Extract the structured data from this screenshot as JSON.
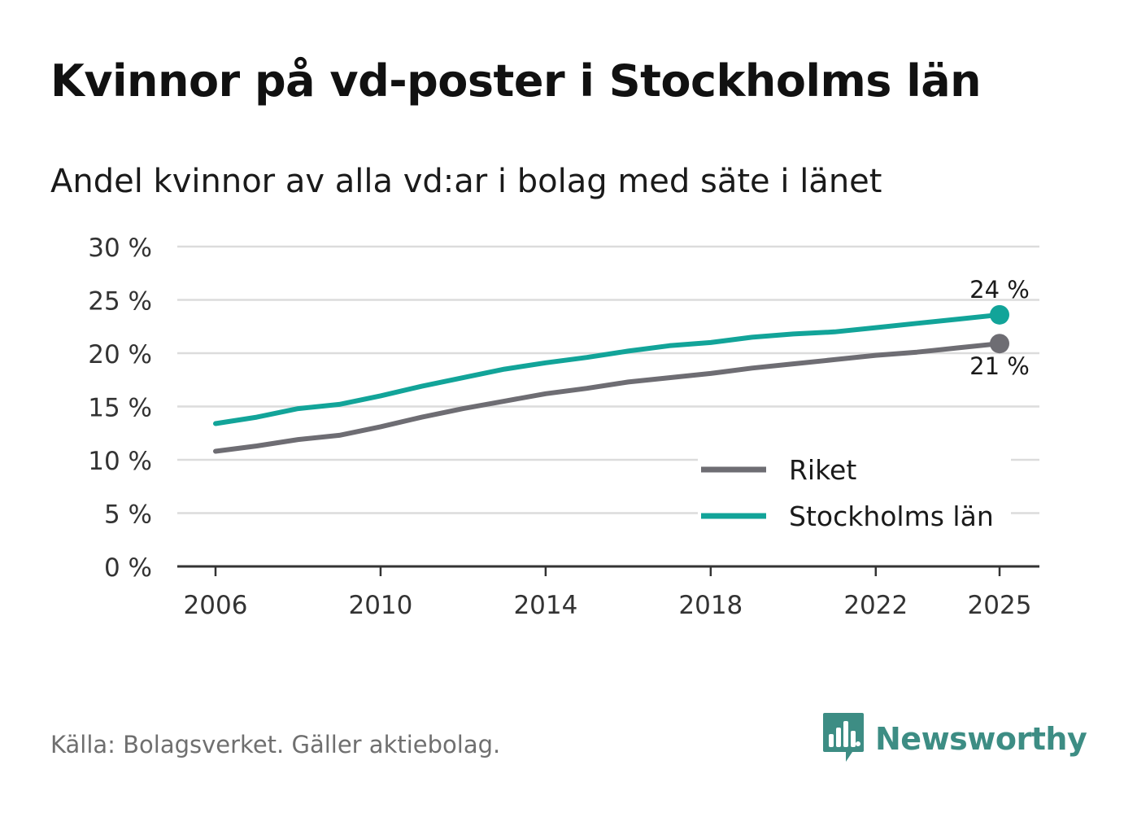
{
  "title": "Kvinnor på vd-poster i Stockholms län",
  "subtitle": "Andel kvinnor av alla vd:ar i bolag med säte i länet",
  "source": "Källa: Bolagsverket. Gäller aktiebolag.",
  "brand": {
    "name": "Newsworthy",
    "icon": "newsworthy-logo-icon"
  },
  "colors": {
    "riket": "#6e6d73",
    "stockholm": "#12a499",
    "grid": "#dcdcdc",
    "axis": "#333333",
    "text": "#1a1a1a"
  },
  "chart_data": {
    "type": "line",
    "title": "Kvinnor på vd-poster i Stockholms län",
    "xlabel": "",
    "ylabel": "",
    "x": [
      2006,
      2007,
      2008,
      2009,
      2010,
      2011,
      2012,
      2013,
      2014,
      2015,
      2016,
      2017,
      2018,
      2019,
      2020,
      2021,
      2022,
      2023,
      2024,
      2025
    ],
    "xlim": [
      2005,
      2026
    ],
    "ylim": [
      0,
      30
    ],
    "y_ticks": [
      0,
      5,
      10,
      15,
      20,
      25,
      30
    ],
    "y_tick_labels": [
      "0 %",
      "5 %",
      "10 %",
      "15 %",
      "20 %",
      "25 %",
      "30 %"
    ],
    "x_ticks": [
      2006,
      2010,
      2014,
      2018,
      2022,
      2025
    ],
    "x_tick_labels": [
      "2006",
      "2010",
      "2014",
      "2018",
      "2022",
      "2025"
    ],
    "grid": true,
    "legend_position": "bottom-right",
    "series": [
      {
        "name": "Riket",
        "color": "#6e6d73",
        "values": [
          10.8,
          11.3,
          11.9,
          12.3,
          13.1,
          14.0,
          14.8,
          15.5,
          16.2,
          16.7,
          17.3,
          17.7,
          18.1,
          18.6,
          19.0,
          19.4,
          19.8,
          20.1,
          20.5,
          20.9
        ],
        "end_label": "21 %"
      },
      {
        "name": "Stockholms län",
        "color": "#12a499",
        "values": [
          13.4,
          14.0,
          14.8,
          15.2,
          16.0,
          16.9,
          17.7,
          18.5,
          19.1,
          19.6,
          20.2,
          20.7,
          21.0,
          21.5,
          21.8,
          22.0,
          22.4,
          22.8,
          23.2,
          23.6
        ],
        "end_label": "24 %"
      }
    ]
  }
}
